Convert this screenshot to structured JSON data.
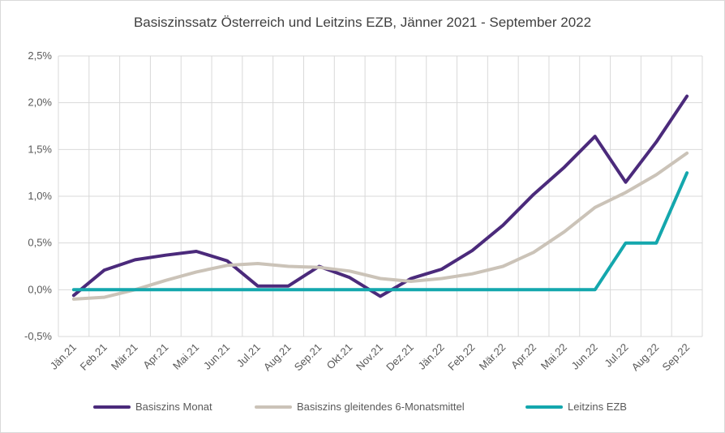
{
  "chart_data": {
    "type": "line",
    "title": "Basiszinssatz Österreich und Leitzins EZB, Jänner 2021 - September 2022",
    "categories": [
      "Jän.21",
      "Feb.21",
      "Mär.21",
      "Apr.21",
      "Mai.21",
      "Jun.21",
      "Jul.21",
      "Aug.21",
      "Sep.21",
      "Okt.21",
      "Nov.21",
      "Dez.21",
      "Jän.22",
      "Feb.22",
      "Mär.22",
      "Apr.22",
      "Mai.22",
      "Jun.22",
      "Jul.22",
      "Aug.22",
      "Sep.22"
    ],
    "ylim": [
      -0.5,
      2.5
    ],
    "yticks": [
      "-0,5%",
      "0,0%",
      "0,5%",
      "1,0%",
      "1,5%",
      "2,0%",
      "2,5%"
    ],
    "grid": true,
    "legend_position": "bottom",
    "series": [
      {
        "name": "Basiszins Monat",
        "color": "#4b2a7b",
        "values": [
          -0.06,
          0.21,
          0.32,
          0.37,
          0.41,
          0.31,
          0.04,
          0.04,
          0.25,
          0.13,
          -0.07,
          0.12,
          0.22,
          0.42,
          0.69,
          1.02,
          1.31,
          1.64,
          1.15,
          1.58,
          2.07
        ]
      },
      {
        "name": "Basiszins gleitendes 6-Monatsmittel",
        "color": "#cbc3b8",
        "values": [
          -0.1,
          -0.08,
          0.0,
          0.1,
          0.19,
          0.26,
          0.28,
          0.25,
          0.24,
          0.2,
          0.12,
          0.09,
          0.12,
          0.17,
          0.25,
          0.4,
          0.62,
          0.88,
          1.04,
          1.23,
          1.46
        ]
      },
      {
        "name": "Leitzins EZB",
        "color": "#14a7ad",
        "values": [
          0,
          0,
          0,
          0,
          0,
          0,
          0,
          0,
          0,
          0,
          0,
          0,
          0,
          0,
          0,
          0,
          0,
          0,
          0.5,
          0.5,
          1.25
        ]
      }
    ]
  }
}
